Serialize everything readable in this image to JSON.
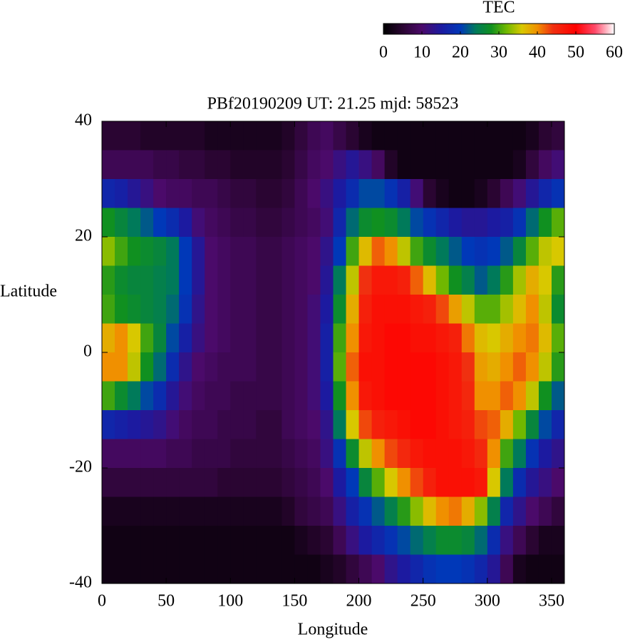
{
  "chart_data": {
    "type": "heatmap",
    "title": "PBf20190209  UT: 21.25  mjd: 58523",
    "x_label": "Longitude",
    "y_label": "Latitude",
    "xlim": [
      0,
      360
    ],
    "ylim": [
      -40,
      40
    ],
    "xticks": [
      0,
      50,
      100,
      150,
      200,
      250,
      300,
      350
    ],
    "yticks": [
      -40,
      -20,
      0,
      20,
      40
    ],
    "x_edges": [
      0,
      10,
      20,
      30,
      40,
      50,
      60,
      70,
      80,
      90,
      100,
      110,
      120,
      130,
      140,
      150,
      160,
      170,
      180,
      190,
      200,
      210,
      220,
      230,
      240,
      250,
      260,
      270,
      280,
      290,
      300,
      310,
      320,
      330,
      340,
      350,
      360
    ],
    "y_edges": [
      40,
      35,
      30,
      25,
      20,
      15,
      10,
      5,
      0,
      -5,
      -10,
      -15,
      -20,
      -25,
      -30,
      -35,
      -40
    ],
    "z": [
      [
        5,
        5,
        5,
        4,
        4,
        4,
        4,
        4,
        3,
        3,
        3,
        3,
        3,
        3,
        4,
        6,
        8,
        9,
        7,
        5,
        3,
        2,
        2,
        2,
        2,
        2,
        2,
        2,
        2,
        2,
        2,
        2,
        2,
        3,
        5,
        6
      ],
      [
        8,
        8,
        8,
        8,
        7,
        7,
        6,
        6,
        5,
        5,
        4,
        4,
        4,
        4,
        5,
        7,
        9,
        10,
        12,
        14,
        12,
        9,
        4,
        2,
        2,
        2,
        2,
        2,
        2,
        2,
        2,
        2,
        3,
        6,
        9,
        11
      ],
      [
        17,
        16,
        14,
        12,
        10,
        9,
        9,
        8,
        8,
        7,
        6,
        6,
        5,
        5,
        6,
        8,
        10,
        12,
        15,
        18,
        21,
        21,
        19,
        16,
        11,
        5,
        3,
        2,
        2,
        3,
        5,
        8,
        11,
        14,
        17,
        19
      ],
      [
        28,
        26,
        24,
        22,
        20,
        18,
        15,
        11,
        9,
        8,
        7,
        7,
        6,
        6,
        7,
        8,
        9,
        11,
        17,
        23,
        27,
        28,
        27,
        24,
        21,
        19,
        17,
        15,
        14,
        14,
        15,
        16,
        19,
        23,
        28,
        31
      ],
      [
        33,
        30,
        28,
        27,
        26,
        24,
        20,
        14,
        10,
        9,
        8,
        8,
        7,
        7,
        8,
        9,
        10,
        13,
        20,
        30,
        37,
        42,
        40,
        35,
        30,
        27,
        24,
        22,
        20,
        19,
        20,
        22,
        26,
        31,
        35,
        36
      ],
      [
        29,
        27,
        26,
        26,
        25,
        24,
        20,
        14,
        10,
        9,
        8,
        8,
        7,
        7,
        8,
        9,
        10,
        14,
        24,
        35,
        44,
        47,
        47,
        46,
        42,
        37,
        32,
        28,
        25,
        22,
        24,
        29,
        34,
        38,
        36,
        29
      ],
      [
        30,
        28,
        27,
        26,
        25,
        23,
        19,
        13,
        10,
        9,
        8,
        8,
        7,
        7,
        8,
        9,
        11,
        15,
        27,
        38,
        46,
        48,
        48,
        48,
        47,
        46,
        43,
        39,
        35,
        31,
        31,
        34,
        37,
        40,
        35,
        27
      ],
      [
        38,
        40,
        36,
        30,
        26,
        21,
        16,
        12,
        10,
        9,
        8,
        8,
        7,
        7,
        8,
        9,
        11,
        16,
        30,
        40,
        47,
        48,
        49,
        49,
        48,
        48,
        47,
        46,
        41,
        37,
        36,
        38,
        40,
        41,
        37,
        31
      ],
      [
        40,
        40,
        35,
        28,
        23,
        18,
        13,
        10,
        9,
        8,
        8,
        8,
        7,
        7,
        8,
        9,
        11,
        16,
        31,
        42,
        48,
        48,
        49,
        49,
        49,
        49,
        48,
        47,
        44,
        39,
        38,
        40,
        42,
        40,
        35,
        29
      ],
      [
        30,
        27,
        24,
        21,
        18,
        14,
        11,
        9,
        8,
        8,
        7,
        7,
        7,
        7,
        8,
        9,
        11,
        15,
        28,
        40,
        47,
        48,
        49,
        49,
        49,
        49,
        48,
        47,
        45,
        40,
        40,
        42,
        40,
        35,
        28,
        22
      ],
      [
        17,
        16,
        15,
        14,
        13,
        11,
        9,
        8,
        8,
        7,
        7,
        7,
        6,
        6,
        8,
        9,
        10,
        13,
        24,
        36,
        43,
        46,
        47,
        48,
        49,
        49,
        48,
        47,
        46,
        43,
        42,
        38,
        32,
        26,
        21,
        17
      ],
      [
        9,
        9,
        9,
        9,
        9,
        8,
        8,
        7,
        7,
        7,
        6,
        6,
        6,
        6,
        7,
        8,
        9,
        12,
        19,
        27,
        35,
        40,
        43,
        45,
        47,
        48,
        48,
        48,
        47,
        45,
        40,
        30,
        24,
        19,
        15,
        13
      ],
      [
        6,
        6,
        6,
        6,
        6,
        6,
        6,
        6,
        6,
        5,
        5,
        5,
        5,
        5,
        6,
        7,
        8,
        10,
        15,
        20,
        26,
        31,
        36,
        40,
        43,
        46,
        48,
        48,
        48,
        47,
        36,
        24,
        18,
        14,
        12,
        10
      ],
      [
        3,
        3,
        3,
        3,
        3,
        3,
        3,
        3,
        3,
        3,
        3,
        3,
        3,
        3,
        4,
        6,
        7,
        8,
        12,
        16,
        19,
        22,
        25,
        29,
        33,
        37,
        40,
        41,
        38,
        33,
        25,
        17,
        13,
        10,
        8,
        6
      ],
      [
        2,
        2,
        2,
        2,
        2,
        2,
        2,
        2,
        2,
        2,
        2,
        2,
        2,
        2,
        2,
        3,
        4,
        5,
        8,
        12,
        15,
        17,
        19,
        21,
        23,
        25,
        27,
        27,
        26,
        23,
        18,
        12,
        8,
        5,
        3,
        3
      ],
      [
        2,
        2,
        2,
        2,
        2,
        2,
        2,
        2,
        2,
        2,
        2,
        2,
        2,
        2,
        2,
        2,
        2,
        3,
        4,
        6,
        8,
        10,
        13,
        15,
        17,
        19,
        20,
        20,
        19,
        17,
        14,
        8,
        3,
        2,
        2,
        2
      ]
    ],
    "colorbar": {
      "label": "TEC",
      "lim": [
        0,
        60
      ],
      "ticks": [
        0,
        10,
        20,
        30,
        40,
        50,
        60
      ]
    },
    "colormap": [
      {
        "value": 0,
        "color": "#000000"
      },
      {
        "value": 5,
        "color": "#2a0532"
      },
      {
        "value": 10,
        "color": "#4b0a6a"
      },
      {
        "value": 15,
        "color": "#1c1aa0"
      },
      {
        "value": 20,
        "color": "#0038b8"
      },
      {
        "value": 24,
        "color": "#007a5a"
      },
      {
        "value": 28,
        "color": "#109020"
      },
      {
        "value": 32,
        "color": "#70b800"
      },
      {
        "value": 36,
        "color": "#d8c800"
      },
      {
        "value": 40,
        "color": "#f09000"
      },
      {
        "value": 44,
        "color": "#f03010"
      },
      {
        "value": 50,
        "color": "#ff0000"
      },
      {
        "value": 55,
        "color": "#ff4a6a"
      },
      {
        "value": 60,
        "color": "#ffffff"
      }
    ]
  }
}
